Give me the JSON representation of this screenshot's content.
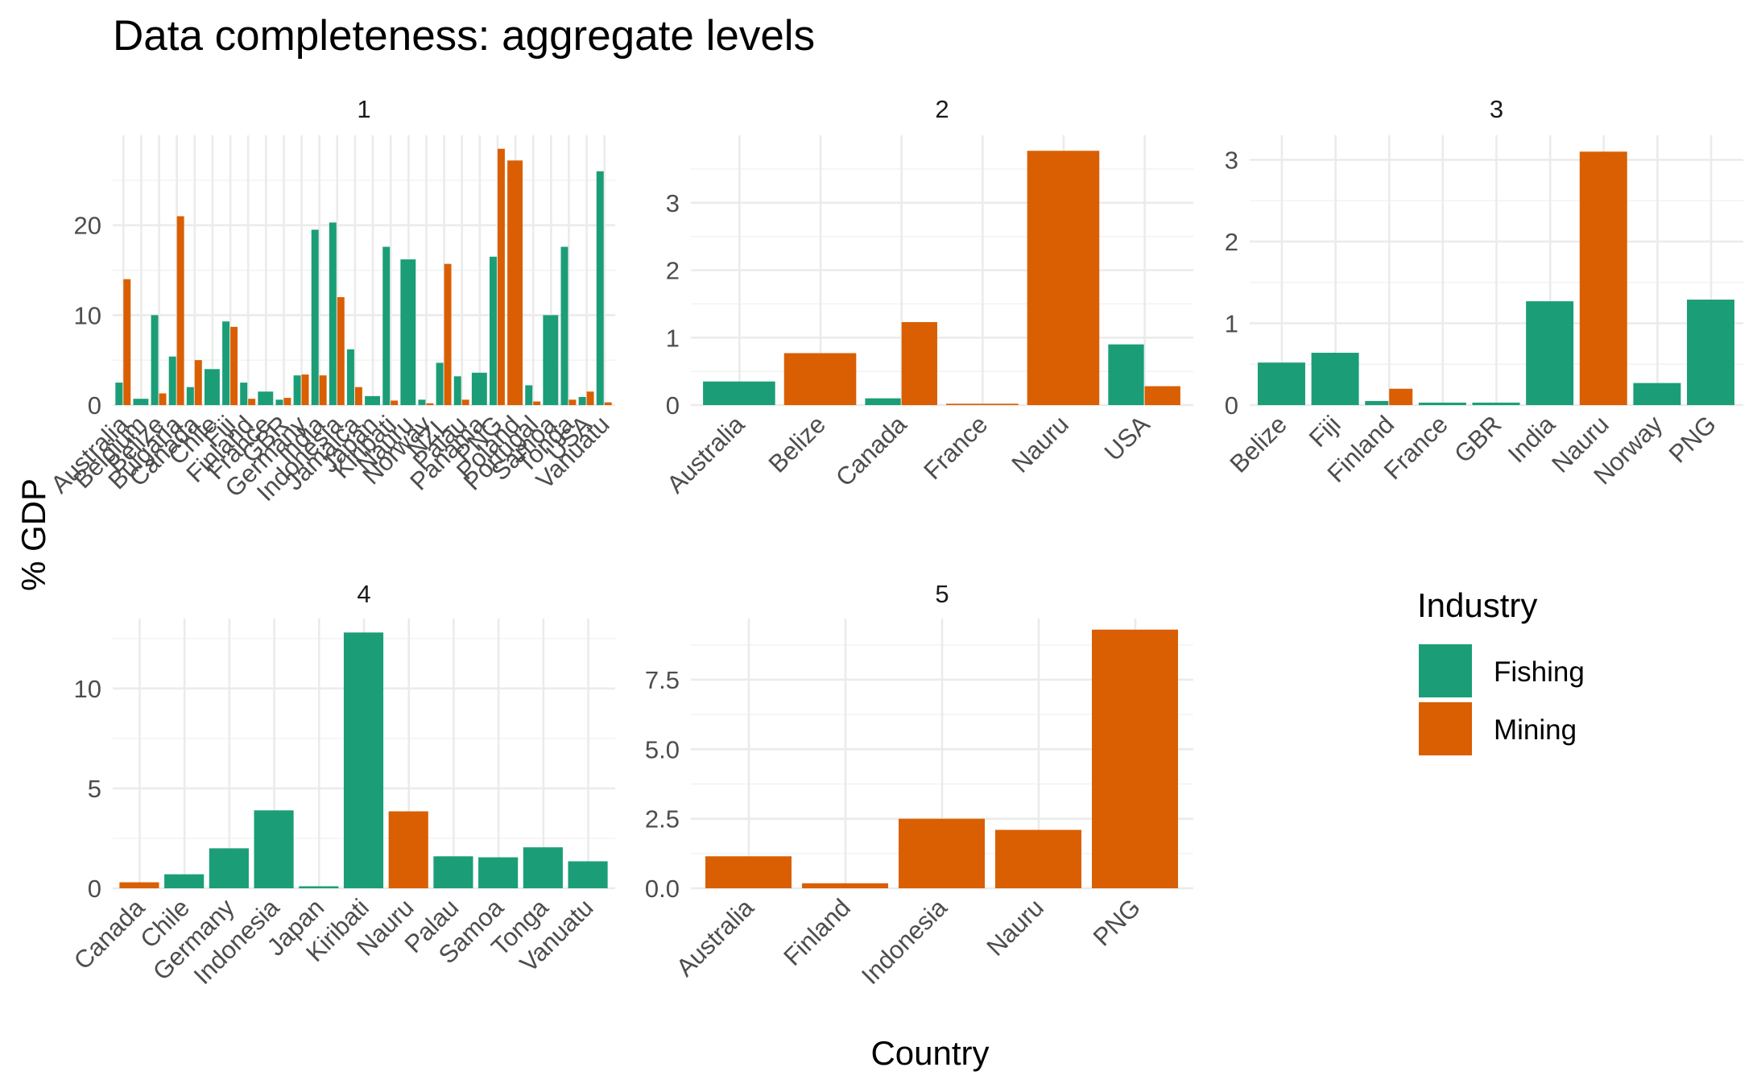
{
  "chart_data": {
    "type": "bar",
    "title": "Data completeness: aggregate levels",
    "xlabel": "Country",
    "ylabel": "% GDP",
    "legend": {
      "title": "Industry",
      "placement": "right",
      "items": [
        {
          "name": "Fishing",
          "color": "#1b9e77"
        },
        {
          "name": "Mining",
          "color": "#d95f02"
        }
      ]
    },
    "grid": true,
    "panels": [
      {
        "label": "1",
        "ylim": [
          0,
          30
        ],
        "yticks": [
          0,
          10,
          20
        ],
        "categories": [
          "Australia",
          "Belgium",
          "Belize",
          "Bulgaria",
          "Canada",
          "Chile",
          "Fiji",
          "Finland",
          "France",
          "GBR",
          "Germany",
          "India",
          "Indonesia",
          "Jamaica",
          "Japan",
          "Kiribati",
          "Nauru",
          "Norway",
          "NZL",
          "Palau",
          "Panama",
          "PNG",
          "Poland",
          "Portugal",
          "Samoa",
          "Tonga",
          "USA",
          "Vanuatu"
        ],
        "series": [
          {
            "name": "Fishing",
            "values": [
              2.5,
              0.7,
              10.0,
              5.4,
              2.0,
              4.0,
              9.3,
              2.5,
              1.5,
              0.6,
              3.3,
              19.5,
              20.3,
              6.2,
              1.0,
              17.6,
              16.2,
              0.6,
              4.7,
              3.2,
              3.6,
              16.5,
              null,
              2.2,
              10.0,
              17.6,
              0.9,
              26.0
            ]
          },
          {
            "name": "Mining",
            "values": [
              14.0,
              null,
              1.3,
              21.0,
              5.0,
              null,
              8.7,
              0.7,
              null,
              0.8,
              3.4,
              3.3,
              12.0,
              2.0,
              null,
              0.5,
              null,
              0.2,
              15.7,
              0.6,
              null,
              28.5,
              27.2,
              0.4,
              null,
              0.6,
              1.5,
              0.3
            ]
          }
        ]
      },
      {
        "label": "2",
        "ylim": [
          0,
          4
        ],
        "yticks": [
          0,
          1,
          2,
          3
        ],
        "categories": [
          "Australia",
          "Belize",
          "Canada",
          "France",
          "Nauru",
          "USA"
        ],
        "series": [
          {
            "name": "Fishing",
            "values": [
              0.35,
              null,
              0.1,
              null,
              null,
              0.9
            ]
          },
          {
            "name": "Mining",
            "values": [
              null,
              0.77,
              1.23,
              0.02,
              3.77,
              0.28
            ]
          }
        ]
      },
      {
        "label": "3",
        "ylim": [
          0,
          3.3
        ],
        "yticks": [
          0,
          1,
          2,
          3
        ],
        "categories": [
          "Belize",
          "Fiji",
          "Finland",
          "France",
          "GBR",
          "India",
          "Nauru",
          "Norway",
          "PNG"
        ],
        "series": [
          {
            "name": "Fishing",
            "values": [
              0.52,
              0.64,
              0.05,
              0.03,
              0.03,
              1.27,
              null,
              0.27,
              1.29
            ]
          },
          {
            "name": "Mining",
            "values": [
              null,
              null,
              0.2,
              null,
              null,
              null,
              3.1,
              null,
              null
            ]
          }
        ]
      },
      {
        "label": "4",
        "ylim": [
          0,
          13.5
        ],
        "yticks": [
          0,
          5,
          10
        ],
        "categories": [
          "Canada",
          "Chile",
          "Germany",
          "Indonesia",
          "Japan",
          "Kiribati",
          "Nauru",
          "Palau",
          "Samoa",
          "Tonga",
          "Vanuatu"
        ],
        "series": [
          {
            "name": "Fishing",
            "values": [
              null,
              0.7,
              2.0,
              3.9,
              0.1,
              12.8,
              null,
              1.6,
              1.55,
              2.05,
              1.35
            ]
          },
          {
            "name": "Mining",
            "values": [
              0.3,
              null,
              null,
              null,
              null,
              null,
              3.85,
              null,
              null,
              null,
              null
            ]
          }
        ]
      },
      {
        "label": "5",
        "ylim": [
          0,
          9.7
        ],
        "yticks": [
          0,
          2.5,
          5.0,
          7.5
        ],
        "ytick_labels": [
          "0.0",
          "2.5",
          "5.0",
          "7.5"
        ],
        "categories": [
          "Australia",
          "Finland",
          "Indonesia",
          "Nauru",
          "PNG"
        ],
        "series": [
          {
            "name": "Fishing",
            "values": [
              null,
              null,
              null,
              null,
              null
            ]
          },
          {
            "name": "Mining",
            "values": [
              1.15,
              0.18,
              2.5,
              2.1,
              9.3
            ]
          }
        ]
      }
    ]
  }
}
